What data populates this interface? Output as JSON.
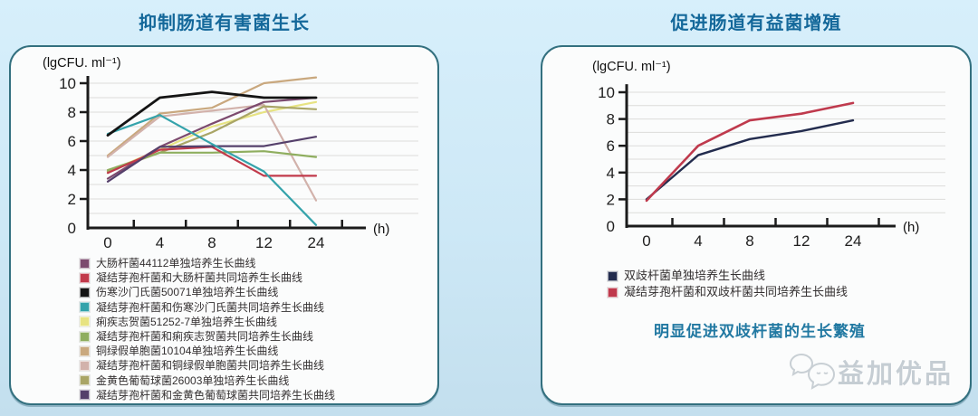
{
  "left_panel": {
    "title": "抑制肠道有害菌生长"
  },
  "right_panel": {
    "title": "促进肠道有益菌增殖",
    "note": "明显促进双歧杆菌的生长繁殖"
  },
  "watermark": {
    "text": "益加优品"
  },
  "colors": {
    "title": "#14689a",
    "note": "#2279a2",
    "panel_border": "#33707f",
    "axis": "#1b1b1b",
    "gridline": "#dcdcda"
  },
  "chart_data": [
    {
      "type": "line",
      "title": "抑制肠道有害菌生长",
      "x_unit": "(h)",
      "y_unit": "(lgCFU. ml⁻¹)",
      "categories": [
        "0",
        "4",
        "8",
        "12",
        "24"
      ],
      "yticks": [
        0,
        2,
        4,
        6,
        8,
        10
      ],
      "ylim": [
        0,
        10.5
      ],
      "grid": true,
      "legend_position": "bottom",
      "draw_order": [
        4,
        6,
        7,
        8,
        5,
        0,
        1,
        9,
        3,
        2
      ],
      "series": [
        {
          "name": "大肠杆菌44112单独培养生长曲线",
          "color": "#7c4a6e",
          "values": [
            3.4,
            5.6,
            7.2,
            8.7,
            9.0
          ]
        },
        {
          "name": "凝结芽孢杆菌和大肠杆菌共同培养生长曲线",
          "color": "#c13a4b",
          "values": [
            3.8,
            5.4,
            5.6,
            3.6,
            3.6
          ]
        },
        {
          "name": "伤寒沙门氏菌50071单独培养生长曲线",
          "color": "#141414",
          "values": [
            6.4,
            9.0,
            9.4,
            9.0,
            9.0
          ],
          "width": 2.8
        },
        {
          "name": "凝结芽孢杆菌和伤寒沙门氏菌共同培养生长曲线",
          "color": "#35a3ab",
          "values": [
            6.5,
            7.8,
            5.8,
            3.9,
            0.2
          ]
        },
        {
          "name": "痢疾志贺菌51252-7单独培养生长曲线",
          "color": "#e7e382",
          "values": [
            3.9,
            5.4,
            7.0,
            8.0,
            8.7
          ]
        },
        {
          "name": "凝结芽孢杆菌和痢疾志贺菌共同培养生长曲线",
          "color": "#8fae5f",
          "values": [
            4.0,
            5.2,
            5.2,
            5.3,
            4.9
          ]
        },
        {
          "name": "铜绿假单胞菌10104单独培养生长曲线",
          "color": "#c9a87e",
          "values": [
            5.0,
            7.9,
            8.3,
            10.0,
            10.4
          ]
        },
        {
          "name": "凝结芽孢杆菌和铜绿假单胞菌共同培养生长曲线",
          "color": "#d2b2ab",
          "values": [
            4.9,
            7.7,
            8.1,
            8.5,
            1.9
          ]
        },
        {
          "name": "金黄色葡萄球菌26003单独培养生长曲线",
          "color": "#a9a566",
          "values": [
            3.9,
            5.2,
            6.6,
            8.4,
            8.2
          ]
        },
        {
          "name": "凝结芽孢杆菌和金黄色葡萄球菌共同培养生长曲线",
          "color": "#55406b",
          "values": [
            3.2,
            5.6,
            5.65,
            5.65,
            6.3
          ]
        }
      ]
    },
    {
      "type": "line",
      "title": "促进肠道有益菌增殖",
      "x_unit": "(h)",
      "y_unit": "(lgCFU. ml⁻¹)",
      "categories": [
        "0",
        "4",
        "8",
        "12",
        "24"
      ],
      "yticks": [
        0,
        2,
        4,
        6,
        8,
        10
      ],
      "ylim": [
        0,
        10.5
      ],
      "grid": true,
      "legend_position": "bottom",
      "annotation": "明显促进双歧杆菌的生长繁殖",
      "series": [
        {
          "name": "双歧杆菌单独培养生长曲线",
          "color": "#232c4e",
          "values": [
            2.0,
            5.3,
            6.5,
            7.1,
            7.9
          ],
          "width": 2.4
        },
        {
          "name": "凝结芽孢杆菌和双歧杆菌共同培养生长曲线",
          "color": "#bf3a4d",
          "values": [
            1.9,
            6.0,
            7.9,
            8.4,
            9.2
          ],
          "width": 2.6
        }
      ]
    }
  ]
}
